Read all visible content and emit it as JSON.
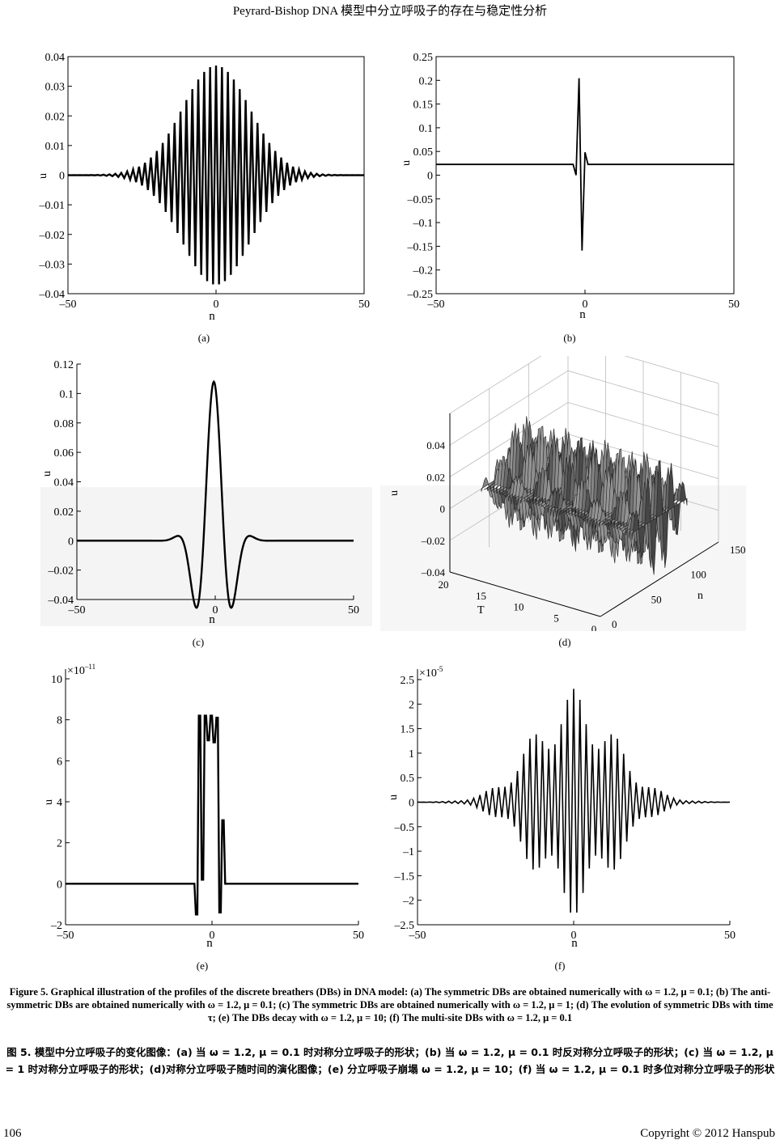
{
  "header": {
    "title": "Peyrard-Bishop DNA 模型中分立呼吸子的存在与稳定性分析"
  },
  "panels": {
    "a": {
      "label": "(a)",
      "xlabel": "n",
      "ylabel": "u",
      "yticks": [
        "0.04",
        "0.03",
        "0.02",
        "0.01",
        "0",
        "–0.01",
        "–0.02",
        "–0.03",
        "–0.04"
      ],
      "xticks": [
        "–50",
        "0",
        "50"
      ]
    },
    "b": {
      "label": "(b)",
      "xlabel": "n",
      "ylabel": "u",
      "yticks": [
        "0.25",
        "0.2",
        "0.15",
        "0.1",
        "0.05",
        "0",
        "–0.05",
        "–0.1",
        "–0.15",
        "–0.2",
        "–0.25"
      ],
      "xticks": [
        "–50",
        "0",
        "50"
      ]
    },
    "c": {
      "label": "(c)",
      "xlabel": "n",
      "ylabel": "u",
      "yticks": [
        "0.12",
        "0.1",
        "0.08",
        "0.06",
        "0.04",
        "0.02",
        "0",
        "–0.02",
        "–0.04"
      ],
      "xticks": [
        "–50",
        "0",
        "50"
      ]
    },
    "d": {
      "label": "(d)",
      "zlabel": "u",
      "tlabel": "T",
      "nlabel": "n",
      "zticks": [
        "0.04",
        "0.02",
        "0",
        "–0.02",
        "–0.04"
      ],
      "tticks": [
        "20",
        "15",
        "10",
        "5",
        "0"
      ],
      "nticks": [
        "0",
        "50",
        "100",
        "150"
      ]
    },
    "e": {
      "label": "(e)",
      "xlabel": "n",
      "ylabel": "u",
      "scale_base": "×10",
      "scale_exp": "–11",
      "yticks": [
        "10",
        "8",
        "6",
        "4",
        "2",
        "0",
        "–2"
      ],
      "xticks": [
        "–50",
        "0",
        "50"
      ]
    },
    "f": {
      "label": "(f)",
      "xlabel": "n",
      "ylabel": "u",
      "scale_base": "×10",
      "scale_exp": "-5",
      "yticks": [
        "2.5",
        "2",
        "1.5",
        "1",
        "0.5",
        "0",
        "–0.5",
        "–1",
        "–1.5",
        "–2",
        "–2.5"
      ],
      "xticks": [
        "–50",
        "0",
        "50"
      ]
    }
  },
  "caption_en": "Figure 5. Graphical illustration of the profiles of the discrete breathers (DBs) in DNA model: (a) The symmetric DBs are obtained numerically with ω = 1.2, μ = 0.1; (b) The anti-symmetric DBs are obtained numerically with ω = 1.2, μ = 0.1; (c) The symmetric DBs are obtained numerically with ω = 1.2, μ = 1; (d) The evolution of symmetric DBs with time τ; (e) The DBs decay with ω = 1.2, μ = 10; (f) The multi-site DBs with ω = 1.2, μ = 0.1",
  "caption_cn": "图 5. 模型中分立呼吸子的变化图像：(a) 当 ω = 1.2, μ = 0.1 时对称分立呼吸子的形状；(b) 当 ω = 1.2, μ = 0.1 时反对称分立呼吸子的形状；(c) 当 ω = 1.2, μ = 1 时对称分立呼吸子的形状；(d)对称分立呼吸子随时间的演化图像；(e) 分立呼吸子崩塌 ω = 1.2, μ = 10；(f) 当 ω = 1.2, μ = 0.1 时多位对称分立呼吸子的形状",
  "footer": {
    "page_number": "106",
    "copyright": "Copyright © 2012 Hanspub"
  }
}
